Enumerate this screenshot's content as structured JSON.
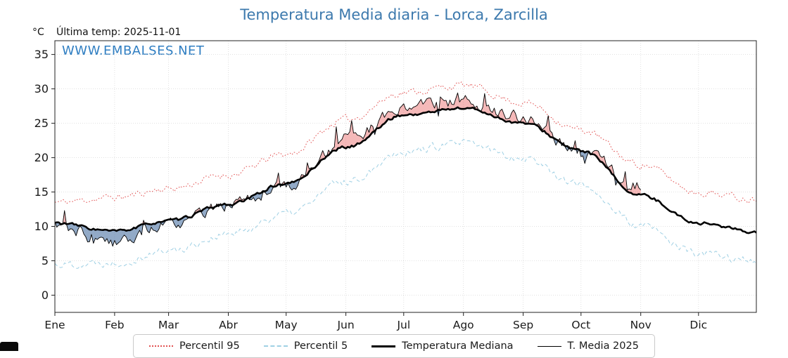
{
  "chart_data": {
    "type": "line",
    "title": "Temperatura Media diaria - Lorca, Zarcilla",
    "title_color": "#3c79ad",
    "ylabel": "°C",
    "last_temp_label": "Última temp: 2025-11-01",
    "watermark": "WWW.EMBALSES.NET",
    "watermark_color": "#2f7ec2",
    "x_tick_labels": [
      "Ene",
      "Feb",
      "Mar",
      "Abr",
      "May",
      "Jun",
      "Jul",
      "Ago",
      "Sep",
      "Oct",
      "Nov",
      "Dic"
    ],
    "y_ticks": [
      0,
      5,
      10,
      15,
      20,
      25,
      30,
      35
    ],
    "ylim": [
      -2.5,
      37
    ],
    "month_start_days": [
      0,
      31,
      59,
      90,
      120,
      151,
      181,
      212,
      243,
      273,
      304,
      334,
      364
    ],
    "grid": {
      "color": "#d9d9d9",
      "on": true
    },
    "legend_position": "bottom-center",
    "series": [
      {
        "key": "p95",
        "label": "Percentil 95",
        "type": "dotted",
        "color": "#e25050",
        "width": 1,
        "anchors": [
          13.5,
          14.2,
          15.5,
          17.5,
          20.5,
          25.5,
          29.5,
          30.5,
          28.0,
          24.0,
          19.0,
          15.0,
          14.0
        ],
        "noise": 0.9,
        "smooth": 0.55,
        "seed": 11
      },
      {
        "key": "p5",
        "label": "Percentil 5",
        "type": "dashed",
        "color": "#9fd0e4",
        "width": 1,
        "anchors": [
          4.5,
          4.8,
          6.5,
          8.8,
          11.8,
          16.5,
          21.0,
          22.0,
          20.0,
          16.0,
          10.0,
          6.0,
          5.0
        ],
        "noise": 1.0,
        "smooth": 0.55,
        "seed": 22
      },
      {
        "key": "median",
        "label": "Temperatura Mediana",
        "type": "solid",
        "color": "#000000",
        "width": 2.6,
        "anchors": [
          10.5,
          9.3,
          10.8,
          13.2,
          16.2,
          21.5,
          26.2,
          27.2,
          25.0,
          21.0,
          14.5,
          10.5,
          9.2
        ],
        "noise": 0.38,
        "smooth": 0.5,
        "seed": 33
      },
      {
        "key": "t2025",
        "label": "T. Media 2025",
        "type": "solid",
        "color": "#000000",
        "width": 0.9,
        "anchors": [
          10.2,
          7.5,
          10.5,
          13.0,
          15.5,
          22.5,
          27.0,
          28.0,
          25.8,
          20.5,
          16.0
        ],
        "noise": 1.5,
        "smooth": 0.62,
        "seed": 44,
        "spike": 4,
        "spike_p": 0.05,
        "end_day": 304
      }
    ],
    "fills": {
      "above_color": "rgba(231,88,88,0.42)",
      "below_color": "rgba(95,130,173,0.68)"
    }
  }
}
